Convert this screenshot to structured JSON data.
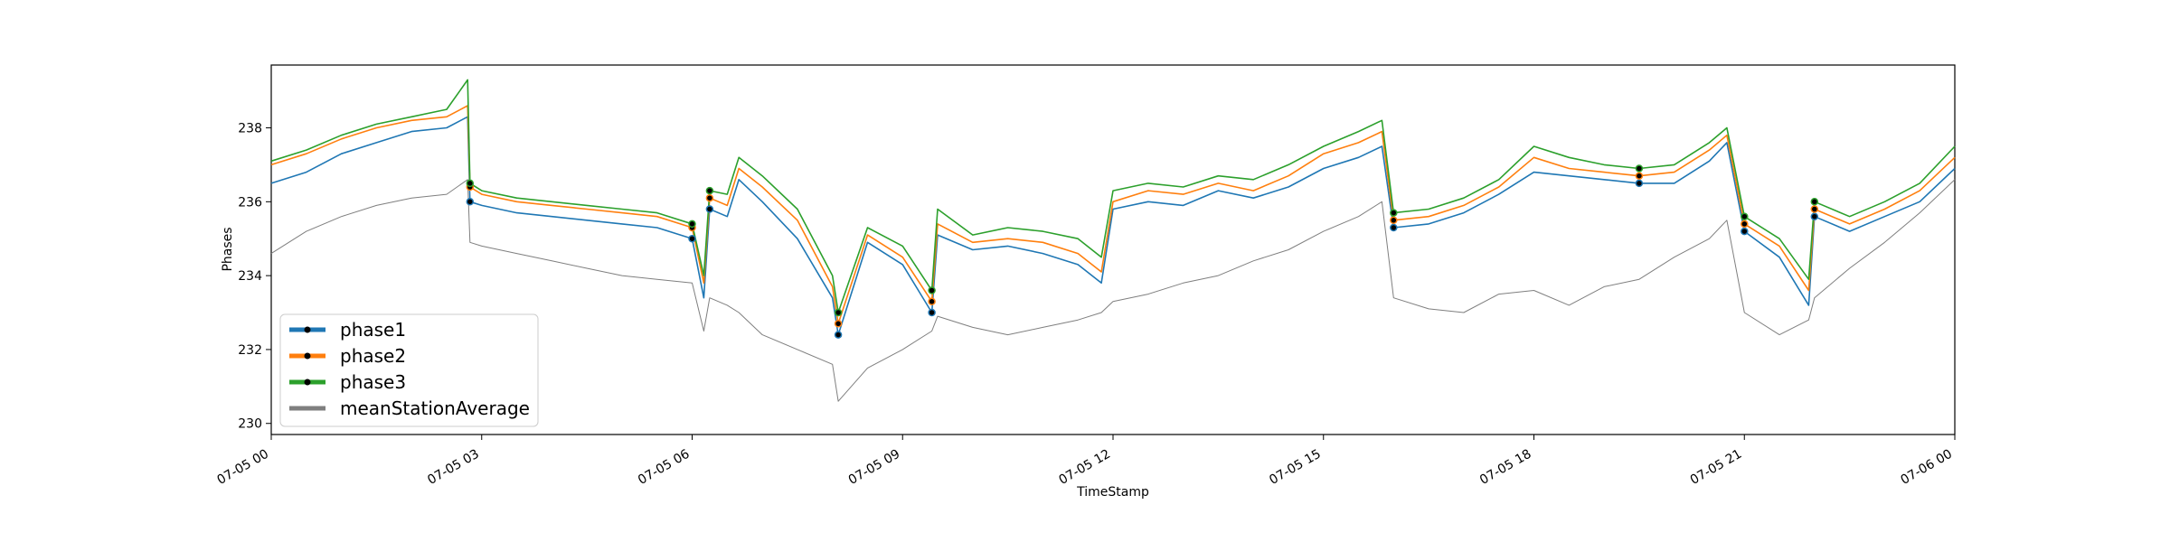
{
  "chart_data": {
    "type": "line",
    "title": "",
    "xlabel": "TimeStamp",
    "ylabel": "Phases",
    "xlim": [
      "07-05 00:00",
      "07-06 00:00"
    ],
    "ylim": [
      229.7,
      239.7
    ],
    "grid": false,
    "legend_placement": "lower-left",
    "x_ticks": [
      "07-05 00",
      "07-05 03",
      "07-05 06",
      "07-05 09",
      "07-05 12",
      "07-05 15",
      "07-05 18",
      "07-05 21",
      "07-06 00"
    ],
    "y_ticks": [
      230,
      232,
      234,
      236,
      238
    ],
    "x": [
      "00:00",
      "00:30",
      "01:00",
      "01:30",
      "02:00",
      "02:30",
      "02:48",
      "02:50",
      "03:00",
      "03:30",
      "04:00",
      "04:30",
      "05:00",
      "05:30",
      "06:00",
      "06:10",
      "06:15",
      "06:30",
      "06:40",
      "07:00",
      "07:30",
      "08:00",
      "08:05",
      "08:30",
      "09:00",
      "09:25",
      "09:30",
      "10:00",
      "10:30",
      "11:00",
      "11:30",
      "11:50",
      "12:00",
      "12:30",
      "13:00",
      "13:30",
      "14:00",
      "14:30",
      "15:00",
      "15:30",
      "15:50",
      "16:00",
      "16:30",
      "17:00",
      "17:30",
      "18:00",
      "18:30",
      "19:00",
      "19:30",
      "20:00",
      "20:30",
      "20:45",
      "21:00",
      "21:30",
      "21:55",
      "22:00",
      "22:30",
      "23:00",
      "23:30",
      "24:00"
    ],
    "series": [
      {
        "name": "phase1",
        "color": "#1f77b4",
        "values": [
          236.5,
          236.8,
          237.3,
          237.6,
          237.9,
          238.0,
          238.3,
          236.0,
          235.9,
          235.7,
          235.6,
          235.5,
          235.4,
          235.3,
          235.0,
          233.4,
          235.8,
          235.6,
          236.6,
          236.0,
          235.0,
          233.4,
          232.4,
          234.9,
          234.3,
          233.0,
          235.1,
          234.7,
          234.8,
          234.6,
          234.3,
          233.8,
          235.8,
          236.0,
          235.9,
          236.3,
          236.1,
          236.4,
          236.9,
          237.2,
          237.5,
          235.3,
          235.4,
          235.7,
          236.2,
          236.8,
          236.7,
          236.6,
          236.5,
          236.5,
          237.1,
          237.6,
          235.2,
          234.5,
          233.2,
          235.6,
          235.2,
          235.6,
          236.0,
          236.9
        ]
      },
      {
        "name": "phase2",
        "color": "#ff7f0e",
        "values": [
          237.0,
          237.3,
          237.7,
          238.0,
          238.2,
          238.3,
          238.6,
          236.4,
          236.2,
          236.0,
          235.9,
          235.8,
          235.7,
          235.6,
          235.3,
          233.8,
          236.1,
          235.9,
          236.9,
          236.4,
          235.5,
          233.7,
          232.7,
          235.1,
          234.5,
          233.3,
          235.4,
          234.9,
          235.0,
          234.9,
          234.6,
          234.1,
          236.0,
          236.3,
          236.2,
          236.5,
          236.3,
          236.7,
          237.3,
          237.6,
          237.9,
          235.5,
          235.6,
          235.9,
          236.4,
          237.2,
          236.9,
          236.8,
          236.7,
          236.8,
          237.4,
          237.8,
          235.4,
          234.8,
          233.6,
          235.8,
          235.4,
          235.8,
          236.3,
          237.2
        ]
      },
      {
        "name": "phase3",
        "color": "#2ca02c",
        "values": [
          237.1,
          237.4,
          237.8,
          238.1,
          238.3,
          238.5,
          239.3,
          236.5,
          236.3,
          236.1,
          236.0,
          235.9,
          235.8,
          235.7,
          235.4,
          234.0,
          236.3,
          236.2,
          237.2,
          236.7,
          235.8,
          234.0,
          233.0,
          235.3,
          234.8,
          233.6,
          235.8,
          235.1,
          235.3,
          235.2,
          235.0,
          234.5,
          236.3,
          236.5,
          236.4,
          236.7,
          236.6,
          237.0,
          237.5,
          237.9,
          238.2,
          235.7,
          235.8,
          236.1,
          236.6,
          237.5,
          237.2,
          237.0,
          236.9,
          237.0,
          237.6,
          238.0,
          235.6,
          235.0,
          233.9,
          236.0,
          235.6,
          236.0,
          236.5,
          237.5
        ]
      },
      {
        "name": "meanStationAverage",
        "color": "#7f7f7f",
        "values": [
          234.6,
          235.2,
          235.6,
          235.9,
          236.1,
          236.2,
          236.6,
          234.9,
          234.8,
          234.6,
          234.4,
          234.2,
          234.0,
          233.9,
          233.8,
          232.5,
          233.4,
          233.2,
          233.0,
          232.4,
          232.0,
          231.6,
          230.6,
          231.5,
          232.0,
          232.5,
          232.9,
          232.6,
          232.4,
          232.6,
          232.8,
          233.0,
          233.3,
          233.5,
          233.8,
          234.0,
          234.4,
          234.7,
          235.2,
          235.6,
          236.0,
          233.4,
          233.1,
          233.0,
          233.5,
          233.6,
          233.2,
          233.7,
          233.9,
          234.5,
          235.0,
          235.5,
          233.0,
          232.4,
          232.8,
          233.4,
          234.2,
          234.9,
          235.7,
          236.6
        ]
      }
    ]
  }
}
